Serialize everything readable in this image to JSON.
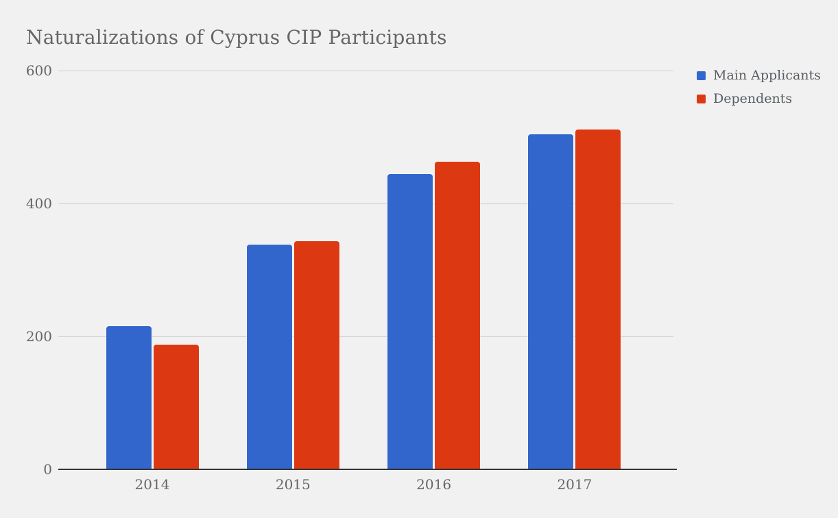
{
  "page": {
    "background_color": "#f1f1f2",
    "text_color": "#666666"
  },
  "chart_data": {
    "type": "bar",
    "title": "Naturalizations of Cyprus CIP Participants",
    "categories": [
      "2014",
      "2015",
      "2016",
      "2017"
    ],
    "series": [
      {
        "name": "Main Applicants",
        "color": "#3366cc",
        "values": [
          214,
          337,
          443,
          503
        ]
      },
      {
        "name": "Dependents",
        "color": "#dc3912",
        "values": [
          187,
          342,
          462,
          510
        ]
      }
    ],
    "xlabel": "",
    "ylabel": "",
    "ylim": [
      0,
      600
    ],
    "yticks": [
      0,
      200,
      400,
      600
    ],
    "grid": "horizontal",
    "gridline_color": "#cccccc",
    "axis_line_color": "#333333",
    "legend_position": "top-right"
  }
}
